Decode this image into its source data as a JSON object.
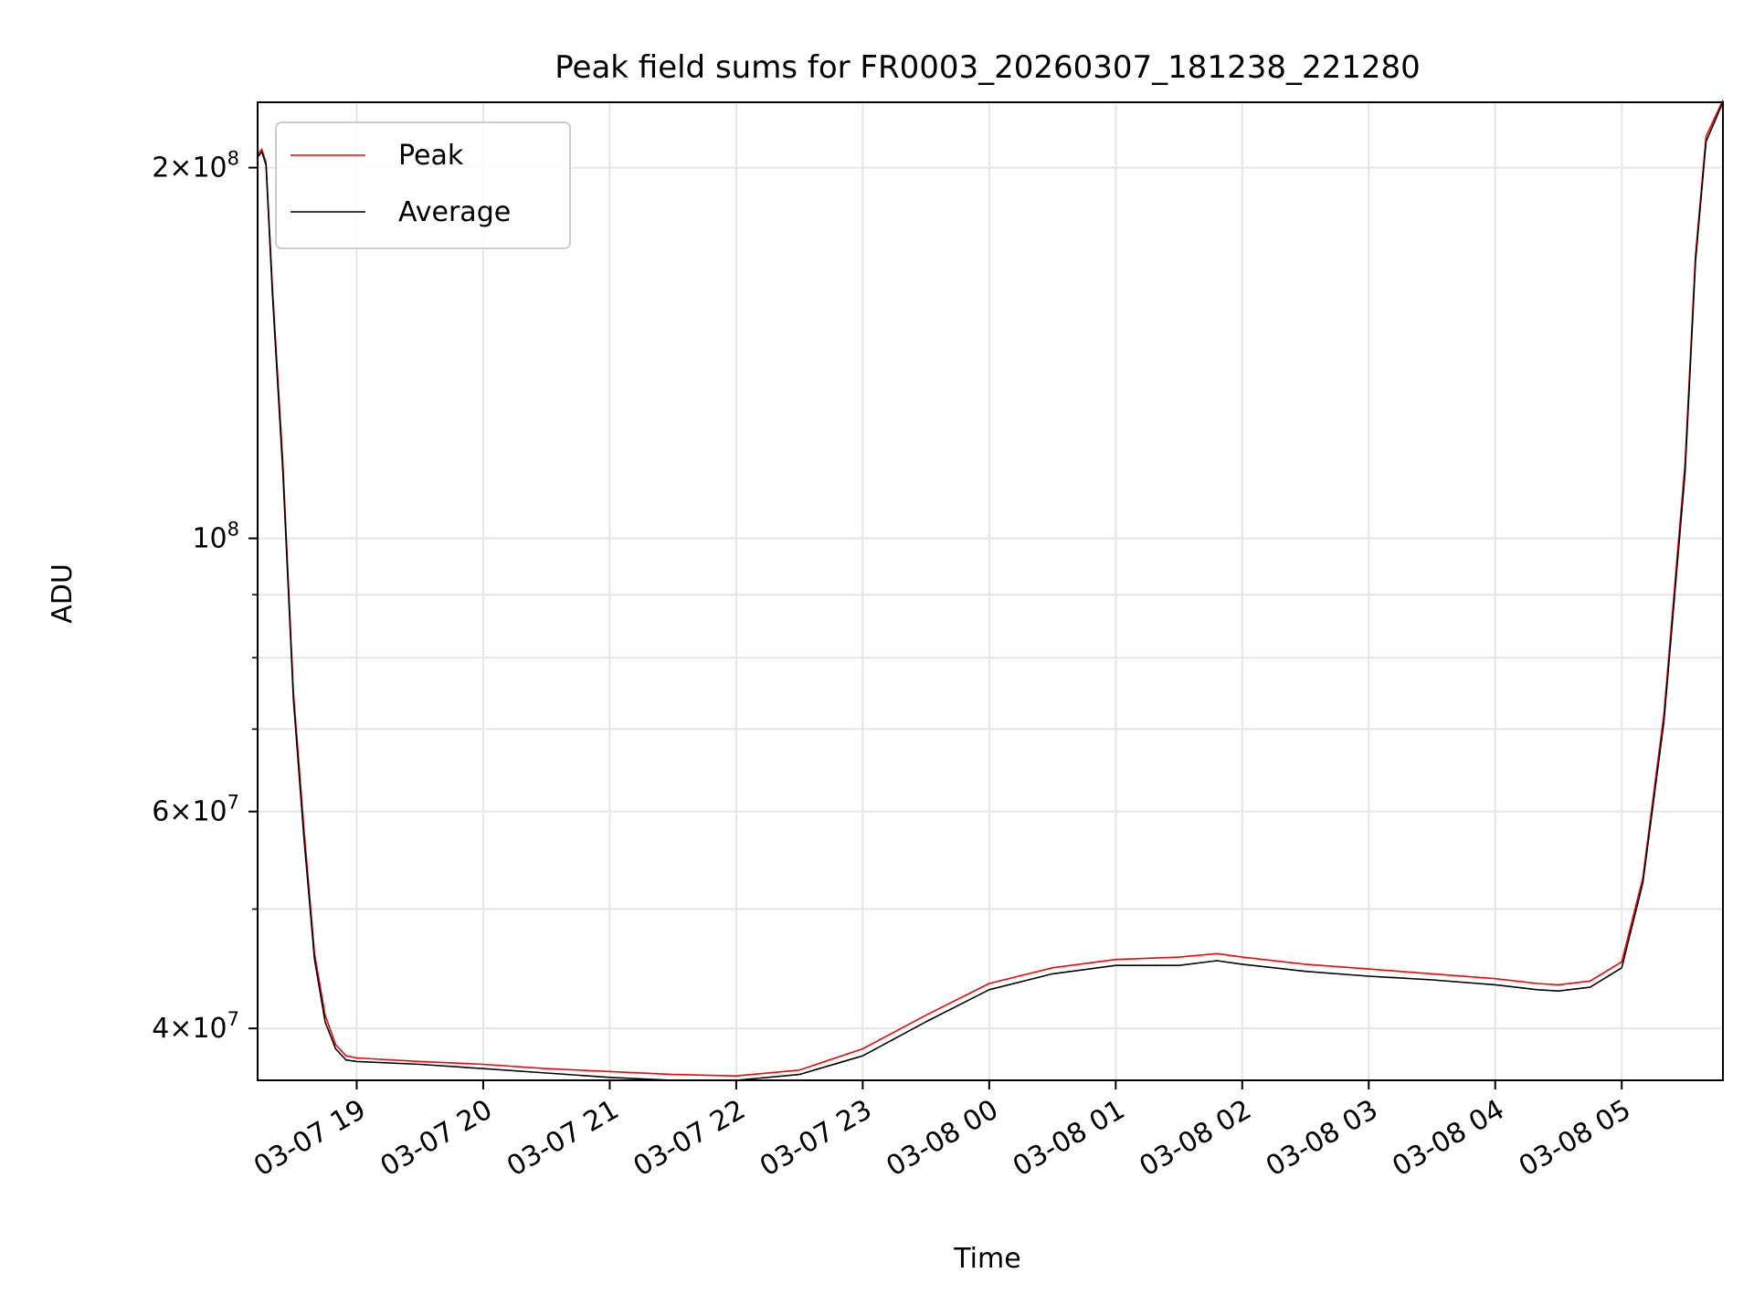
{
  "chart_data": {
    "type": "line",
    "title": "Peak field sums for FR0003_20260307_181238_221280",
    "xlabel": "Time",
    "ylabel": "ADU",
    "y_scale": "log",
    "ylim": [
      36300000,
      226000000
    ],
    "xlim": [
      "2026-03-07T18:13",
      "2026-03-08T05:48"
    ],
    "grid": true,
    "legend_position": "upper left",
    "x_tick_labels": [
      "03-07 19",
      "03-07 20",
      "03-07 21",
      "03-07 22",
      "03-07 23",
      "03-08 00",
      "03-08 01",
      "03-08 02",
      "03-08 03",
      "03-08 04",
      "03-08 05"
    ],
    "x_ticks": [
      "2026-03-07T19:00",
      "2026-03-07T20:00",
      "2026-03-07T21:00",
      "2026-03-07T22:00",
      "2026-03-07T23:00",
      "2026-03-08T00:00",
      "2026-03-08T01:00",
      "2026-03-08T02:00",
      "2026-03-08T03:00",
      "2026-03-08T04:00",
      "2026-03-08T05:00"
    ],
    "y_major_ticks": [
      {
        "value": 40000000,
        "mant": "4",
        "exp": "7"
      },
      {
        "value": 60000000,
        "mant": "6",
        "exp": "7"
      },
      {
        "value": 100000000,
        "mant": "",
        "exp": "8"
      },
      {
        "value": 200000000,
        "mant": "2",
        "exp": "8"
      }
    ],
    "y_minor_ticks": [
      50000000,
      70000000,
      80000000,
      90000000
    ],
    "series": [
      {
        "name": "Peak",
        "color": "#ff0000",
        "x": [
          "2026-03-07T18:13",
          "2026-03-07T18:15",
          "2026-03-07T18:17",
          "2026-03-07T18:20",
          "2026-03-07T18:25",
          "2026-03-07T18:30",
          "2026-03-07T18:35",
          "2026-03-07T18:40",
          "2026-03-07T18:45",
          "2026-03-07T18:50",
          "2026-03-07T18:55",
          "2026-03-07T19:00",
          "2026-03-07T19:30",
          "2026-03-07T20:00",
          "2026-03-07T20:30",
          "2026-03-07T21:00",
          "2026-03-07T21:30",
          "2026-03-07T22:00",
          "2026-03-07T22:30",
          "2026-03-07T23:00",
          "2026-03-07T23:30",
          "2026-03-08T00:00",
          "2026-03-08T00:30",
          "2026-03-08T01:00",
          "2026-03-08T01:30",
          "2026-03-08T01:48",
          "2026-03-08T02:00",
          "2026-03-08T02:30",
          "2026-03-08T03:00",
          "2026-03-08T03:30",
          "2026-03-08T04:00",
          "2026-03-08T04:20",
          "2026-03-08T04:30",
          "2026-03-08T04:45",
          "2026-03-08T05:00",
          "2026-03-08T05:10",
          "2026-03-08T05:20",
          "2026-03-08T05:30",
          "2026-03-08T05:35",
          "2026-03-08T05:40",
          "2026-03-08T05:48"
        ],
        "y": [
          205000000,
          207000000,
          202000000,
          160000000,
          115000000,
          75000000,
          58000000,
          46000000,
          41000000,
          38800000,
          38000000,
          37850000,
          37600000,
          37400000,
          37100000,
          36900000,
          36700000,
          36600000,
          37000000,
          38500000,
          41000000,
          43500000,
          44800000,
          45500000,
          45700000,
          46000000,
          45700000,
          45100000,
          44700000,
          44300000,
          43900000,
          43500000,
          43400000,
          43700000,
          45300000,
          53000000,
          72000000,
          115000000,
          170000000,
          212000000,
          227000000
        ]
      },
      {
        "name": "Average",
        "color": "#000000",
        "x": [
          "2026-03-07T18:13",
          "2026-03-07T18:15",
          "2026-03-07T18:17",
          "2026-03-07T18:20",
          "2026-03-07T18:25",
          "2026-03-07T18:30",
          "2026-03-07T18:35",
          "2026-03-07T18:40",
          "2026-03-07T18:45",
          "2026-03-07T18:50",
          "2026-03-07T18:55",
          "2026-03-07T19:00",
          "2026-03-07T19:30",
          "2026-03-07T20:00",
          "2026-03-07T20:30",
          "2026-03-07T21:00",
          "2026-03-07T21:30",
          "2026-03-07T22:00",
          "2026-03-07T22:30",
          "2026-03-07T23:00",
          "2026-03-07T23:30",
          "2026-03-08T00:00",
          "2026-03-08T00:30",
          "2026-03-08T01:00",
          "2026-03-08T01:30",
          "2026-03-08T01:48",
          "2026-03-08T02:00",
          "2026-03-08T02:30",
          "2026-03-08T03:00",
          "2026-03-08T03:30",
          "2026-03-08T04:00",
          "2026-03-08T04:20",
          "2026-03-08T04:30",
          "2026-03-08T04:45",
          "2026-03-08T05:00",
          "2026-03-08T05:10",
          "2026-03-08T05:20",
          "2026-03-08T05:30",
          "2026-03-08T05:35",
          "2026-03-08T05:40",
          "2026-03-08T05:48"
        ],
        "y": [
          204000000,
          206000000,
          201000000,
          158000000,
          113000000,
          74000000,
          57000000,
          45500000,
          40500000,
          38500000,
          37700000,
          37600000,
          37400000,
          37100000,
          36800000,
          36500000,
          36300000,
          36300000,
          36700000,
          38000000,
          40500000,
          43000000,
          44300000,
          45000000,
          45000000,
          45400000,
          45100000,
          44500000,
          44100000,
          43800000,
          43400000,
          43000000,
          42900000,
          43200000,
          44800000,
          52500000,
          71000000,
          113000000,
          168000000,
          210000000,
          226000000
        ]
      }
    ]
  }
}
